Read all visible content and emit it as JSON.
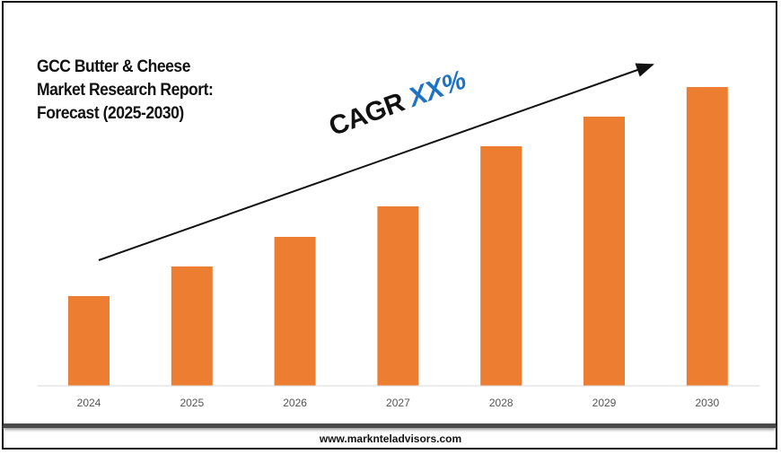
{
  "chart_data": {
    "type": "bar",
    "title": [
      "GCC Butter & Cheese",
      "Market Research Report:",
      "Forecast (2025-2030)"
    ],
    "categories": [
      "2024",
      "2025",
      "2026",
      "2027",
      "2028",
      "2029",
      "2030"
    ],
    "values": [
      100,
      133,
      166,
      200,
      267,
      300,
      333
    ],
    "ylim": [
      0,
      333
    ],
    "xlabel": "",
    "ylabel": "",
    "grid": false,
    "bar_color": "#ed7d31",
    "annotation": {
      "label": "CAGR",
      "value": "XX%",
      "value_color": "#1f73c4"
    }
  },
  "footer": {
    "website": "www.marknteladvisors.com"
  }
}
